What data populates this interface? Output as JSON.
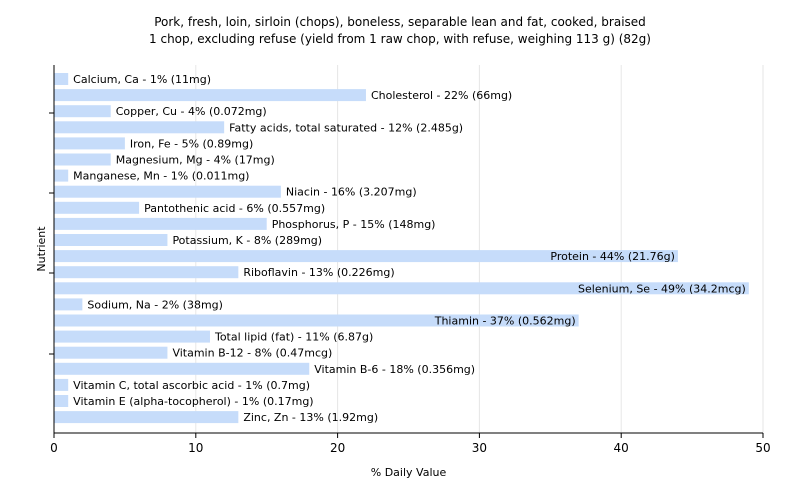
{
  "chart_data": {
    "type": "bar",
    "orientation": "horizontal",
    "title": "Pork, fresh, loin, sirloin (chops), boneless, separable lean and fat, cooked, braised",
    "subtitle": "1 chop, excluding refuse (yield from 1 raw chop, with refuse, weighing 113 g) (82g)",
    "xlabel": "% Daily Value",
    "ylabel": "Nutrient",
    "xlim": [
      0,
      50
    ],
    "xticks": [
      "0",
      "10",
      "20",
      "30",
      "40",
      "50"
    ],
    "grid": true,
    "bar_color": "#c6dcfa",
    "categories": [
      "Calcium, Ca",
      "Cholesterol",
      "Copper, Cu",
      "Fatty acids, total saturated",
      "Iron, Fe",
      "Magnesium, Mg",
      "Manganese, Mn",
      "Niacin",
      "Pantothenic acid",
      "Phosphorus, P",
      "Potassium, K",
      "Protein",
      "Riboflavin",
      "Selenium, Se",
      "Sodium, Na",
      "Thiamin",
      "Total lipid (fat)",
      "Vitamin B-12",
      "Vitamin B-6",
      "Vitamin C, total ascorbic acid",
      "Vitamin E (alpha-tocopherol)",
      "Zinc, Zn"
    ],
    "values": [
      1,
      22,
      4,
      12,
      5,
      4,
      1,
      16,
      6,
      15,
      8,
      44,
      13,
      49,
      2,
      37,
      11,
      8,
      18,
      1,
      1,
      13
    ],
    "labels": [
      "Calcium, Ca - 1% (11mg)",
      "Cholesterol - 22% (66mg)",
      "Copper, Cu - 4% (0.072mg)",
      "Fatty acids, total saturated - 12% (2.485g)",
      "Iron, Fe - 5% (0.89mg)",
      "Magnesium, Mg - 4% (17mg)",
      "Manganese, Mn - 1% (0.011mg)",
      "Niacin - 16% (3.207mg)",
      "Pantothenic acid - 6% (0.557mg)",
      "Phosphorus, P - 15% (148mg)",
      "Potassium, K - 8% (289mg)",
      "Protein - 44% (21.76g)",
      "Riboflavin - 13% (0.226mg)",
      "Selenium, Se - 49% (34.2mcg)",
      "Sodium, Na - 2% (38mg)",
      "Thiamin - 37% (0.562mg)",
      "Total lipid (fat) - 11% (6.87g)",
      "Vitamin B-12 - 8% (0.47mcg)",
      "Vitamin B-6 - 18% (0.356mg)",
      "Vitamin C, total ascorbic acid - 1% (0.7mg)",
      "Vitamin E (alpha-tocopherol) - 1% (0.17mg)",
      "Zinc, Zn - 13% (1.92mg)"
    ]
  }
}
